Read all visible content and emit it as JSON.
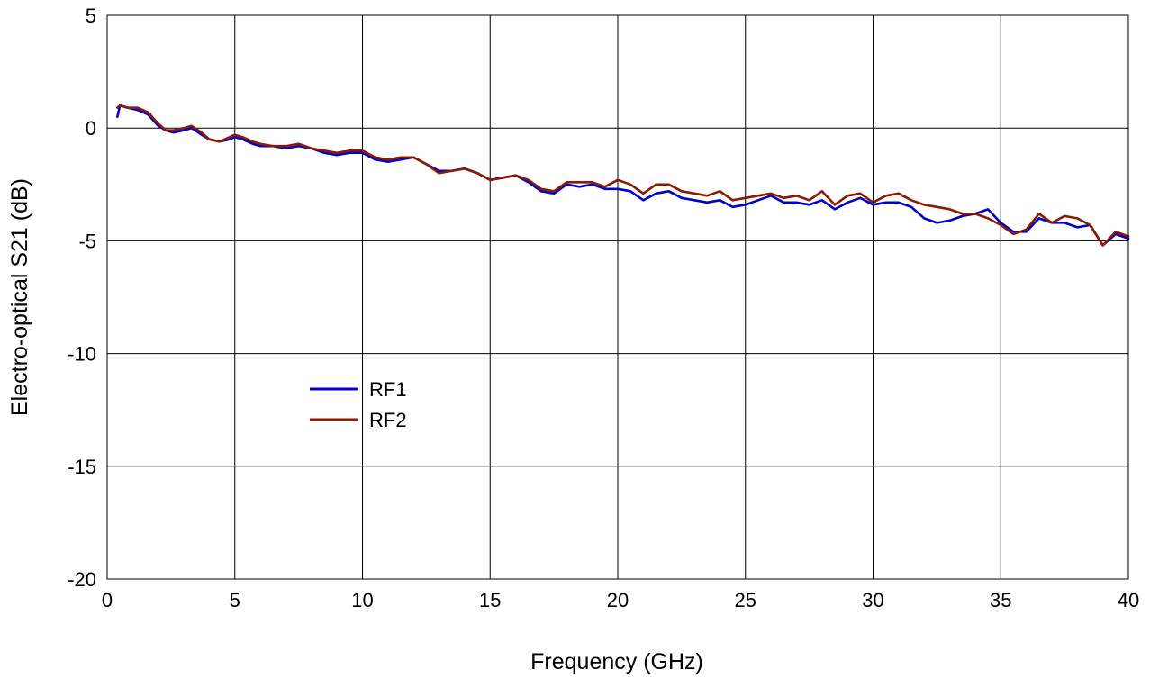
{
  "chart_data": {
    "type": "line",
    "title": "",
    "xlabel": "Frequency (GHz)",
    "ylabel": "Electro-optical S21 (dB)",
    "xlim": [
      0,
      40
    ],
    "ylim": [
      -20,
      5
    ],
    "x_ticks": [
      0,
      5,
      10,
      15,
      20,
      25,
      30,
      35,
      40
    ],
    "y_ticks": [
      5,
      0,
      -5,
      -10,
      -15,
      -20
    ],
    "x_tick_labels": [
      "0",
      "5",
      "10",
      "15",
      "20",
      "25",
      "30",
      "35",
      "40"
    ],
    "y_tick_labels": [
      "5",
      "0",
      "-5",
      "-10",
      "-15",
      "-20"
    ],
    "grid": true,
    "legend_position": "middle-left",
    "series": [
      {
        "name": "RF1",
        "color": "#0000cc",
        "x": [
          0.4,
          0.5,
          0.8,
          1.2,
          1.6,
          2.0,
          2.3,
          2.6,
          3.0,
          3.3,
          3.7,
          4.0,
          4.4,
          4.8,
          5.0,
          5.3,
          5.7,
          6.0,
          6.5,
          7.0,
          7.5,
          8.0,
          8.5,
          9.0,
          9.5,
          10.0,
          10.5,
          11.0,
          11.5,
          12.0,
          12.5,
          13.0,
          13.5,
          14.0,
          14.5,
          15.0,
          15.5,
          16.0,
          16.5,
          17.0,
          17.5,
          18.0,
          18.5,
          19.0,
          19.5,
          20.0,
          20.5,
          21.0,
          21.5,
          22.0,
          22.5,
          23.0,
          23.5,
          24.0,
          24.5,
          25.0,
          25.5,
          26.0,
          26.5,
          27.0,
          27.5,
          28.0,
          28.5,
          29.0,
          29.5,
          30.0,
          30.5,
          31.0,
          31.5,
          32.0,
          32.5,
          33.0,
          33.5,
          34.0,
          34.5,
          35.0,
          35.5,
          36.0,
          36.5,
          37.0,
          37.5,
          38.0,
          38.5,
          39.0,
          39.5,
          40.0
        ],
        "y": [
          0.5,
          1.0,
          0.9,
          0.8,
          0.6,
          0.1,
          -0.1,
          -0.2,
          -0.1,
          0.0,
          -0.3,
          -0.5,
          -0.6,
          -0.5,
          -0.4,
          -0.5,
          -0.7,
          -0.8,
          -0.8,
          -0.9,
          -0.8,
          -0.9,
          -1.1,
          -1.2,
          -1.1,
          -1.1,
          -1.4,
          -1.5,
          -1.4,
          -1.3,
          -1.6,
          -1.9,
          -1.9,
          -1.8,
          -2.0,
          -2.3,
          -2.2,
          -2.1,
          -2.4,
          -2.8,
          -2.9,
          -2.5,
          -2.6,
          -2.5,
          -2.7,
          -2.7,
          -2.8,
          -3.2,
          -2.9,
          -2.8,
          -3.1,
          -3.2,
          -3.3,
          -3.2,
          -3.5,
          -3.4,
          -3.2,
          -3.0,
          -3.3,
          -3.3,
          -3.4,
          -3.2,
          -3.6,
          -3.3,
          -3.1,
          -3.4,
          -3.3,
          -3.3,
          -3.5,
          -4.0,
          -4.2,
          -4.1,
          -3.9,
          -3.8,
          -3.6,
          -4.2,
          -4.6,
          -4.6,
          -4.0,
          -4.2,
          -4.2,
          -4.4,
          -4.3,
          -5.2,
          -4.7,
          -4.9
        ]
      },
      {
        "name": "RF2",
        "color": "#8b1a00",
        "x": [
          0.4,
          0.5,
          0.8,
          1.2,
          1.6,
          2.0,
          2.3,
          2.6,
          3.0,
          3.3,
          3.7,
          4.0,
          4.4,
          4.8,
          5.0,
          5.3,
          5.7,
          6.0,
          6.5,
          7.0,
          7.5,
          8.0,
          8.5,
          9.0,
          9.5,
          10.0,
          10.5,
          11.0,
          11.5,
          12.0,
          12.5,
          13.0,
          13.5,
          14.0,
          14.5,
          15.0,
          15.5,
          16.0,
          16.5,
          17.0,
          17.5,
          18.0,
          18.5,
          19.0,
          19.5,
          20.0,
          20.5,
          21.0,
          21.5,
          22.0,
          22.5,
          23.0,
          23.5,
          24.0,
          24.5,
          25.0,
          25.5,
          26.0,
          26.5,
          27.0,
          27.5,
          28.0,
          28.5,
          29.0,
          29.5,
          30.0,
          30.5,
          31.0,
          31.5,
          32.0,
          32.5,
          33.0,
          33.5,
          34.0,
          34.5,
          35.0,
          35.5,
          36.0,
          36.5,
          37.0,
          37.5,
          38.0,
          38.5,
          39.0,
          39.5,
          40.0
        ],
        "y": [
          0.9,
          1.0,
          0.9,
          0.9,
          0.7,
          0.2,
          -0.1,
          -0.1,
          0.0,
          0.1,
          -0.2,
          -0.5,
          -0.6,
          -0.4,
          -0.3,
          -0.4,
          -0.6,
          -0.7,
          -0.8,
          -0.8,
          -0.7,
          -0.9,
          -1.0,
          -1.1,
          -1.0,
          -1.0,
          -1.3,
          -1.4,
          -1.3,
          -1.3,
          -1.6,
          -2.0,
          -1.9,
          -1.8,
          -2.0,
          -2.3,
          -2.2,
          -2.1,
          -2.3,
          -2.7,
          -2.8,
          -2.4,
          -2.4,
          -2.4,
          -2.6,
          -2.3,
          -2.5,
          -2.9,
          -2.5,
          -2.5,
          -2.8,
          -2.9,
          -3.0,
          -2.8,
          -3.2,
          -3.1,
          -3.0,
          -2.9,
          -3.1,
          -3.0,
          -3.2,
          -2.8,
          -3.4,
          -3.0,
          -2.9,
          -3.3,
          -3.0,
          -2.9,
          -3.2,
          -3.4,
          -3.5,
          -3.6,
          -3.8,
          -3.8,
          -4.0,
          -4.3,
          -4.7,
          -4.5,
          -3.8,
          -4.2,
          -3.9,
          -4.0,
          -4.3,
          -5.2,
          -4.6,
          -4.8
        ]
      }
    ]
  }
}
